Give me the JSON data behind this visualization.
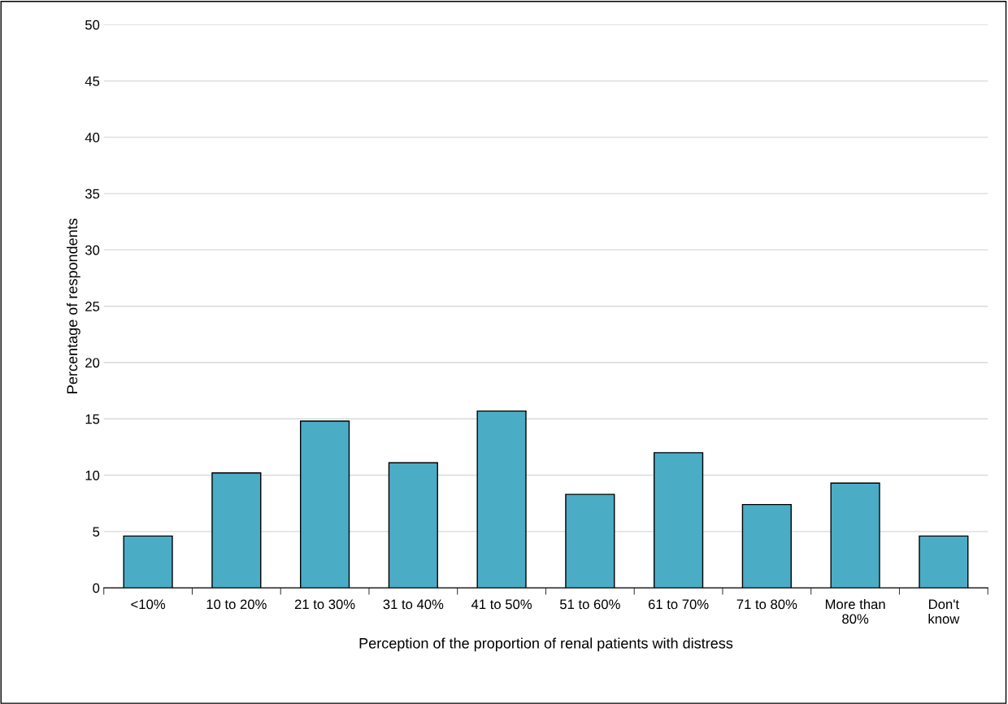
{
  "chart_data": {
    "type": "bar",
    "xlabel": "Perception of the proportion of renal patients with distress",
    "ylabel": "Percentage of respondents",
    "categories": [
      "<10%",
      "10 to 20%",
      "21 to 30%",
      "31 to 40%",
      "41 to 50%",
      "51 to 60%",
      "61 to 70%",
      "71 to 80%",
      "More than\n80%",
      "Don't\nknow"
    ],
    "values": [
      4.6,
      10.2,
      14.8,
      11.1,
      15.7,
      8.3,
      12.0,
      7.4,
      9.3,
      4.6
    ],
    "color": "#4bacc6",
    "ylim": [
      0,
      50
    ],
    "yticks": [
      0,
      5,
      10,
      15,
      20,
      25,
      30,
      35,
      40,
      45,
      50
    ],
    "grid": "y",
    "legend": false
  }
}
